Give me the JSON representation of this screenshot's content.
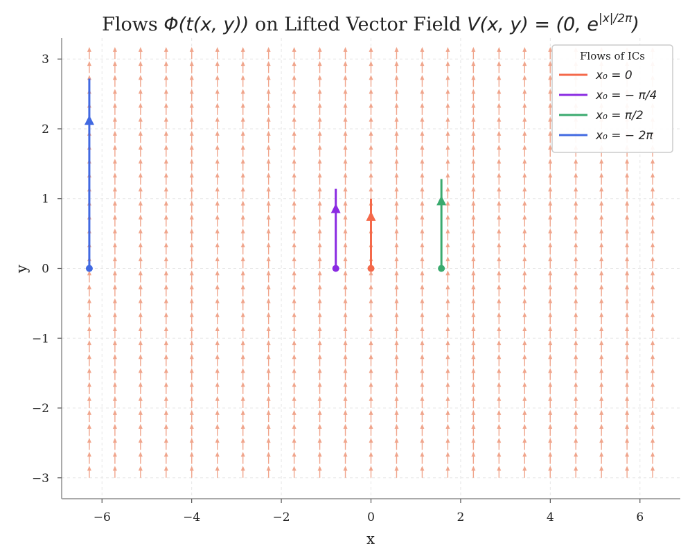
{
  "chart_data": {
    "type": "quiver",
    "title": "Flows Φ(t(x, y)) on Lifted Vector Field V(x, y) = (0, e^{|x|/2π})",
    "title_parts": {
      "a": "Flows ",
      "b": "Φ(t(x, y))",
      "c": " on Lifted Vector Field ",
      "d": "V(x, y) = (0, e",
      "sup": "|x|/2π",
      "e": ")"
    },
    "xlabel": "x",
    "ylabel": "y",
    "xlim": [
      -6.9,
      6.9
    ],
    "ylim": [
      -3.3,
      3.3
    ],
    "xticks": [
      -6,
      -4,
      -2,
      0,
      2,
      4,
      6
    ],
    "yticks": [
      -3,
      -2,
      -1,
      0,
      1,
      2,
      3
    ],
    "xtick_labels": [
      "−6",
      "−4",
      "−2",
      "0",
      "2",
      "4",
      "6"
    ],
    "ytick_labels": [
      "−3",
      "−2",
      "−1",
      "0",
      "1",
      "2",
      "3"
    ],
    "grid": true,
    "field": {
      "color": "#f0a58c",
      "x_range": [
        -6.283,
        6.283
      ],
      "y_range": [
        -3.0,
        3.0
      ],
      "nx": 23,
      "ny": 31,
      "arrow_length": 0.08
    },
    "legend": {
      "title": "Flows of ICs",
      "position": "upper right"
    },
    "series": [
      {
        "name": "x₀ = 0",
        "color": "#f4694a",
        "x0": 0,
        "y_start": 0,
        "y_end": 1.0
      },
      {
        "name": "x₀ = − π/4",
        "color": "#8a2be2",
        "x0": -0.785,
        "y_start": 0,
        "y_end": 1.14
      },
      {
        "name": "x₀ = π/2",
        "color": "#3aaa6e",
        "x0": 1.571,
        "y_start": 0,
        "y_end": 1.28
      },
      {
        "name": "x₀ = − 2π",
        "color": "#4169e1",
        "x0": -6.283,
        "y_start": 0,
        "y_end": 2.72
      }
    ]
  }
}
